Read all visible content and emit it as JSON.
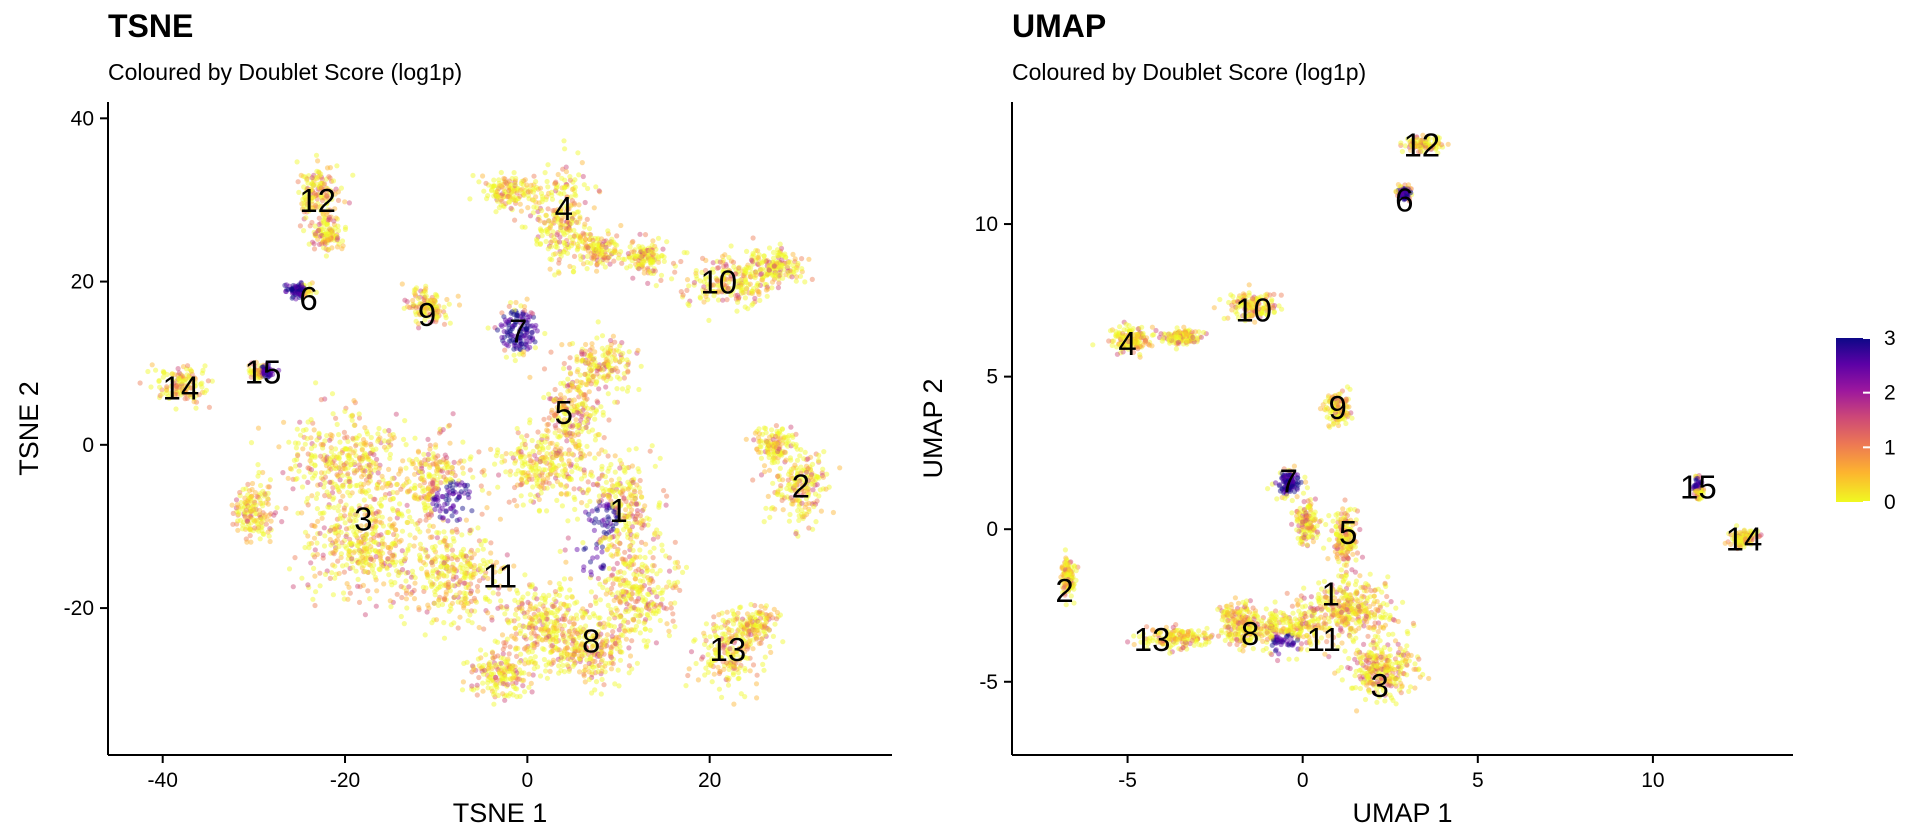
{
  "chart_data": [
    {
      "type": "scatter",
      "title": "TSNE",
      "subtitle": "Coloured by Doublet Score (log1p)",
      "xlabel": "TSNE 1",
      "ylabel": "TSNE 2",
      "xlim": [
        -46,
        40
      ],
      "ylim": [
        -38,
        42
      ],
      "xticks": [
        -40,
        -20,
        0,
        20
      ],
      "yticks": [
        -20,
        0,
        20,
        40
      ],
      "tick_labels_x": [
        "-40",
        "-20",
        "0",
        "20"
      ],
      "tick_labels_y": [
        "-20",
        "0",
        "20",
        "40"
      ],
      "clusters": [
        {
          "label": "1",
          "x": 10,
          "y": -8
        },
        {
          "label": "2",
          "x": 30,
          "y": -5
        },
        {
          "label": "3",
          "x": -18,
          "y": -9
        },
        {
          "label": "4",
          "x": 4,
          "y": 29
        },
        {
          "label": "5",
          "x": 4,
          "y": 4
        },
        {
          "label": "6",
          "x": -24,
          "y": 18
        },
        {
          "label": "7",
          "x": -1,
          "y": 14
        },
        {
          "label": "8",
          "x": 7,
          "y": -24
        },
        {
          "label": "9",
          "x": -11,
          "y": 16
        },
        {
          "label": "10",
          "x": 21,
          "y": 20
        },
        {
          "label": "11",
          "x": -3,
          "y": -16
        },
        {
          "label": "12",
          "x": -23,
          "y": 30
        },
        {
          "label": "13",
          "x": 22,
          "y": -25
        },
        {
          "label": "14",
          "x": -38,
          "y": 7
        },
        {
          "label": "15",
          "x": -29,
          "y": 9
        }
      ]
    },
    {
      "type": "scatter",
      "title": "UMAP",
      "subtitle": "Coloured by Doublet Score (log1p)",
      "xlabel": "UMAP 1",
      "ylabel": "UMAP 2",
      "xlim": [
        -8.3,
        14.0
      ],
      "ylim": [
        -7.4,
        14.0
      ],
      "xticks": [
        -5,
        0,
        5,
        10
      ],
      "yticks": [
        -5,
        0,
        5,
        10
      ],
      "tick_labels_x": [
        "-5",
        "0",
        "5",
        "10"
      ],
      "tick_labels_y": [
        "-5",
        "0",
        "5",
        "10"
      ],
      "clusters": [
        {
          "label": "1",
          "x": 0.8,
          "y": -2.1
        },
        {
          "label": "2",
          "x": -6.8,
          "y": -2.0
        },
        {
          "label": "3",
          "x": 2.2,
          "y": -5.1
        },
        {
          "label": "4",
          "x": -5.0,
          "y": 6.1
        },
        {
          "label": "5",
          "x": 1.3,
          "y": -0.1
        },
        {
          "label": "6",
          "x": 2.9,
          "y": 10.8
        },
        {
          "label": "7",
          "x": -0.4,
          "y": 1.6
        },
        {
          "label": "8",
          "x": -1.5,
          "y": -3.4
        },
        {
          "label": "9",
          "x": 1.0,
          "y": 4.0
        },
        {
          "label": "10",
          "x": -1.4,
          "y": 7.2
        },
        {
          "label": "11",
          "x": 0.6,
          "y": -3.6
        },
        {
          "label": "12",
          "x": 3.4,
          "y": 12.6
        },
        {
          "label": "13",
          "x": -4.3,
          "y": -3.6
        },
        {
          "label": "14",
          "x": 12.6,
          "y": -0.3
        },
        {
          "label": "15",
          "x": 11.3,
          "y": 1.4
        }
      ]
    }
  ],
  "legend": {
    "values": [
      3,
      2,
      1,
      0
    ],
    "labels": [
      "3",
      "2",
      "1",
      "0"
    ],
    "colormap": [
      "#f0f921",
      "#fdb42f",
      "#ed7953",
      "#cc4778",
      "#9c179e",
      "#5c01a6",
      "#0d0887"
    ]
  }
}
